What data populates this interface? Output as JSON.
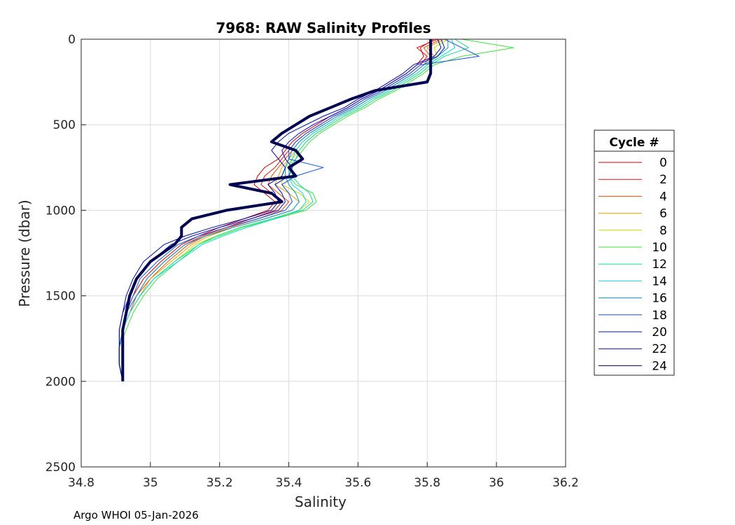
{
  "chart_data": {
    "type": "line",
    "title": "7968: RAW Salinity Profiles",
    "xlabel": "Salinity",
    "ylabel": "Pressure (dbar)",
    "xlim": [
      34.8,
      36.2
    ],
    "ylim": [
      0,
      2500
    ],
    "y_reversed": true,
    "grid": true,
    "x_ticks": [
      "34.8",
      "35",
      "35.2",
      "35.4",
      "35.6",
      "35.8",
      "36",
      "36.2"
    ],
    "y_ticks": [
      "0",
      "500",
      "1000",
      "1500",
      "2000",
      "2500"
    ],
    "legend_title": "Cycle #",
    "legend_position": "outside-right",
    "footer": "Argo WHOI 05-Jan-2026",
    "pressure": [
      0,
      50,
      100,
      150,
      200,
      250,
      300,
      350,
      400,
      450,
      500,
      550,
      600,
      650,
      700,
      750,
      800,
      850,
      900,
      950,
      1000,
      1050,
      1100,
      1150,
      1200,
      1300,
      1400,
      1500,
      1600,
      1700,
      1800,
      1900,
      2000
    ],
    "series": [
      {
        "name": "0",
        "color": "#d00000",
        "width": 1,
        "values": [
          35.82,
          35.78,
          35.79,
          35.77,
          35.74,
          35.7,
          35.66,
          35.61,
          35.57,
          35.52,
          35.48,
          35.44,
          35.41,
          35.39,
          35.37,
          35.33,
          35.31,
          35.3,
          35.33,
          35.36,
          35.34,
          35.27,
          35.2,
          35.14,
          35.09,
          35.03,
          34.98,
          34.95,
          34.93,
          34.92,
          34.91,
          34.91,
          34.92
        ]
      },
      {
        "name": "2",
        "color": "#e01010",
        "width": 1,
        "values": [
          35.83,
          35.77,
          35.8,
          35.78,
          35.75,
          35.71,
          35.67,
          35.62,
          35.58,
          35.53,
          35.49,
          35.45,
          35.42,
          35.4,
          35.38,
          35.36,
          35.33,
          35.32,
          35.35,
          35.38,
          35.36,
          35.29,
          35.22,
          35.15,
          35.1,
          35.04,
          34.99,
          34.96,
          34.93,
          34.92,
          34.91,
          34.91,
          34.92
        ]
      },
      {
        "name": "4",
        "color": "#ee4a00",
        "width": 1,
        "values": [
          35.84,
          35.79,
          35.81,
          35.79,
          35.76,
          35.72,
          35.68,
          35.63,
          35.59,
          35.54,
          35.5,
          35.46,
          35.43,
          35.41,
          35.39,
          35.37,
          35.35,
          35.34,
          35.37,
          35.4,
          35.38,
          35.31,
          35.23,
          35.16,
          35.11,
          35.05,
          35.0,
          34.96,
          34.94,
          34.92,
          34.91,
          34.91,
          34.92
        ]
      },
      {
        "name": "6",
        "color": "#e8a000",
        "width": 1,
        "values": [
          35.85,
          35.8,
          35.82,
          35.8,
          35.77,
          35.73,
          35.69,
          35.64,
          35.6,
          35.55,
          35.51,
          35.47,
          35.44,
          35.42,
          35.4,
          35.38,
          35.37,
          35.36,
          35.4,
          35.43,
          35.41,
          35.33,
          35.24,
          35.17,
          35.12,
          35.06,
          35.0,
          34.97,
          34.94,
          34.92,
          34.91,
          34.91,
          34.92
        ]
      },
      {
        "name": "8",
        "color": "#c8d800",
        "width": 1,
        "values": [
          35.86,
          35.82,
          35.83,
          35.81,
          35.78,
          35.74,
          35.7,
          35.65,
          35.61,
          35.56,
          35.52,
          35.48,
          35.45,
          35.43,
          35.41,
          35.39,
          35.38,
          35.38,
          35.43,
          35.46,
          35.43,
          35.35,
          35.26,
          35.19,
          35.13,
          35.07,
          35.01,
          34.97,
          34.94,
          34.92,
          34.91,
          34.91,
          34.92
        ]
      },
      {
        "name": "10",
        "color": "#40e040",
        "width": 1,
        "values": [
          35.9,
          36.05,
          35.9,
          35.82,
          35.79,
          35.75,
          35.71,
          35.66,
          35.62,
          35.57,
          35.53,
          35.49,
          35.46,
          35.44,
          35.42,
          35.4,
          35.4,
          35.42,
          35.47,
          35.48,
          35.45,
          35.36,
          35.27,
          35.2,
          35.14,
          35.08,
          35.02,
          34.98,
          34.95,
          34.93,
          34.91,
          34.91,
          34.92
        ]
      },
      {
        "name": "12",
        "color": "#10e090",
        "width": 1,
        "values": [
          35.88,
          35.92,
          35.85,
          35.81,
          35.78,
          35.74,
          35.7,
          35.65,
          35.61,
          35.56,
          35.52,
          35.48,
          35.45,
          35.43,
          35.42,
          35.41,
          35.41,
          35.43,
          35.46,
          35.47,
          35.44,
          35.35,
          35.26,
          35.19,
          35.14,
          35.07,
          35.01,
          34.97,
          34.94,
          34.92,
          34.91,
          34.91,
          34.92
        ]
      },
      {
        "name": "14",
        "color": "#10d8e0",
        "width": 1,
        "values": [
          35.87,
          35.88,
          35.84,
          35.8,
          35.77,
          35.73,
          35.69,
          35.64,
          35.6,
          35.55,
          35.51,
          35.47,
          35.44,
          35.42,
          35.41,
          35.4,
          35.4,
          35.41,
          35.44,
          35.45,
          35.43,
          35.36,
          35.28,
          35.21,
          35.15,
          35.08,
          35.01,
          34.97,
          34.94,
          34.92,
          34.91,
          34.91,
          34.92
        ]
      },
      {
        "name": "16",
        "color": "#0098d0",
        "width": 1,
        "values": [
          35.86,
          35.86,
          35.83,
          35.79,
          35.76,
          35.72,
          35.68,
          35.63,
          35.59,
          35.54,
          35.5,
          35.46,
          35.43,
          35.41,
          35.4,
          35.39,
          35.39,
          35.4,
          35.42,
          35.43,
          35.41,
          35.33,
          35.24,
          35.16,
          35.1,
          35.04,
          34.99,
          34.96,
          34.93,
          34.92,
          34.91,
          34.91,
          34.92
        ]
      },
      {
        "name": "18",
        "color": "#1050e0",
        "width": 1,
        "values": [
          35.85,
          35.9,
          35.95,
          35.78,
          35.75,
          35.71,
          35.67,
          35.62,
          35.58,
          35.53,
          35.49,
          35.45,
          35.42,
          35.4,
          35.4,
          35.5,
          35.42,
          35.38,
          35.4,
          35.41,
          35.39,
          35.31,
          35.22,
          35.14,
          35.08,
          35.02,
          34.97,
          34.95,
          34.93,
          34.92,
          34.91,
          34.91,
          34.92
        ]
      },
      {
        "name": "20",
        "color": "#0010c8",
        "width": 1,
        "values": [
          35.84,
          35.85,
          35.83,
          35.77,
          35.74,
          35.7,
          35.66,
          35.61,
          35.57,
          35.52,
          35.47,
          35.43,
          35.4,
          35.38,
          35.39,
          35.41,
          35.4,
          35.36,
          35.38,
          35.39,
          35.37,
          35.29,
          35.2,
          35.12,
          35.06,
          35.0,
          34.96,
          34.94,
          34.92,
          34.91,
          34.91,
          34.91,
          34.92
        ]
      },
      {
        "name": "22",
        "color": "#000898",
        "width": 1,
        "values": [
          35.83,
          35.84,
          35.82,
          35.76,
          35.73,
          35.69,
          35.65,
          35.6,
          35.56,
          35.5,
          35.45,
          35.4,
          35.37,
          35.35,
          35.37,
          35.39,
          35.38,
          35.34,
          35.36,
          35.37,
          35.35,
          35.27,
          35.18,
          35.1,
          35.04,
          34.98,
          34.95,
          34.93,
          34.92,
          34.91,
          34.91,
          34.91,
          34.92
        ]
      },
      {
        "name": "24",
        "color": "#000050",
        "width": 4,
        "values": [
          35.81,
          35.81,
          35.81,
          35.81,
          35.81,
          35.8,
          35.65,
          35.58,
          35.52,
          35.46,
          35.42,
          35.38,
          35.35,
          35.42,
          35.44,
          35.4,
          35.42,
          35.23,
          35.35,
          35.38,
          35.22,
          35.12,
          35.09,
          35.09,
          35.07,
          35.0,
          34.96,
          34.94,
          34.93,
          34.92,
          34.92,
          34.92,
          34.92
        ]
      }
    ]
  }
}
